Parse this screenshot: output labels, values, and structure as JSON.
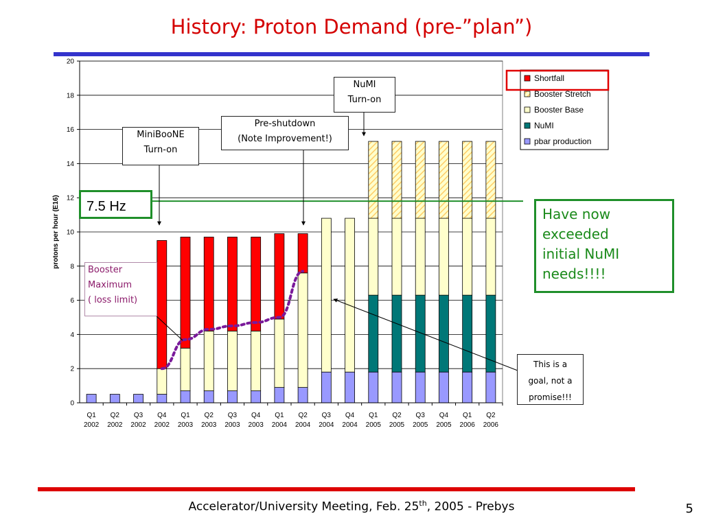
{
  "slide": {
    "title": "History: Proton Demand (pre-”plan”)",
    "footer_main": "Accelerator/University Meeting, Feb. 25",
    "footer_sup": "th",
    "footer_tail": ", 2005  - Prebys",
    "page_number": "5"
  },
  "annotations": {
    "miniboone": [
      "MiniBooNE",
      "Turn-on"
    ],
    "preshutdown": [
      "Pre-shutdown",
      "(Note Improvement!)"
    ],
    "numi": [
      "NuMI",
      "Turn-on"
    ],
    "booster_max": [
      "Booster",
      "Maximum",
      "( loss limit)"
    ],
    "hz": "7.5 Hz",
    "needs": [
      "Have now",
      "exceeded",
      "initial NuMI",
      "needs!!!!"
    ],
    "goal": [
      "This is a",
      "goal, not a",
      "promise!!!"
    ]
  },
  "chart_data": {
    "type": "bar",
    "stacked": true,
    "ylabel": "protons per hour (E16)",
    "ylim": [
      0,
      20
    ],
    "yticks": [
      0,
      2,
      4,
      6,
      8,
      10,
      12,
      14,
      16,
      18,
      20
    ],
    "grid": true,
    "legend_position": "top-right",
    "categories": [
      [
        "Q1",
        "2002"
      ],
      [
        "Q2",
        "2002"
      ],
      [
        "Q3",
        "2002"
      ],
      [
        "Q4",
        "2002"
      ],
      [
        "Q1",
        "2003"
      ],
      [
        "Q2",
        "2003"
      ],
      [
        "Q3",
        "2003"
      ],
      [
        "Q4",
        "2003"
      ],
      [
        "Q1",
        "2004"
      ],
      [
        "Q2",
        "2004"
      ],
      [
        "Q3",
        "2004"
      ],
      [
        "Q4",
        "2004"
      ],
      [
        "Q1",
        "2005"
      ],
      [
        "Q2",
        "2005"
      ],
      [
        "Q3",
        "2005"
      ],
      [
        "Q4",
        "2005"
      ],
      [
        "Q1",
        "2006"
      ],
      [
        "Q2",
        "2006"
      ]
    ],
    "series": [
      {
        "name": "pbar production",
        "color": "#9999ff",
        "pattern": "solid",
        "values": [
          0.5,
          0.5,
          0.5,
          0.5,
          0.7,
          0.7,
          0.7,
          0.7,
          0.9,
          0.9,
          1.8,
          1.8,
          1.8,
          1.8,
          1.8,
          1.8,
          1.8,
          1.8
        ]
      },
      {
        "name": "NuMI",
        "color": "#007777",
        "pattern": "solid",
        "values": [
          0,
          0,
          0,
          0,
          0,
          0,
          0,
          0,
          0,
          0,
          0,
          0,
          4.5,
          4.5,
          4.5,
          4.5,
          4.5,
          4.5
        ]
      },
      {
        "name": "Booster Base",
        "color": "#ffffcc",
        "pattern": "solid",
        "values": [
          0,
          0,
          0,
          1.5,
          2.5,
          3.5,
          3.5,
          3.5,
          4.0,
          6.7,
          9.0,
          9.0,
          4.5,
          4.5,
          4.5,
          4.5,
          4.5,
          4.5
        ]
      },
      {
        "name": "Booster Stretch",
        "color": "#ffcc66",
        "pattern": "hatched",
        "values": [
          0,
          0,
          0,
          0,
          0,
          0,
          0,
          0,
          0,
          0,
          0,
          0,
          4.5,
          4.5,
          4.5,
          4.5,
          4.5,
          4.5
        ]
      },
      {
        "name": "Shortfall",
        "color": "#ff0000",
        "pattern": "solid",
        "values": [
          0,
          0,
          0,
          7.5,
          6.5,
          5.5,
          5.5,
          5.5,
          5.0,
          2.3,
          0,
          0,
          0,
          0,
          0,
          0,
          0,
          0
        ]
      }
    ],
    "legend_order": [
      "Shortfall",
      "Booster Stretch",
      "Booster Base",
      "NuMI",
      "pbar production"
    ],
    "booster_maximum_curve": {
      "color": "#7a1a9a",
      "points": [
        [
          3,
          2.0
        ],
        [
          4,
          3.7
        ],
        [
          5,
          4.3
        ],
        [
          6,
          4.5
        ],
        [
          7,
          4.7
        ],
        [
          8,
          5.0
        ],
        [
          9,
          7.7
        ]
      ]
    },
    "reference_line": {
      "label": "7.5 Hz",
      "y": 11.8,
      "color": "#1f8f2a"
    }
  }
}
